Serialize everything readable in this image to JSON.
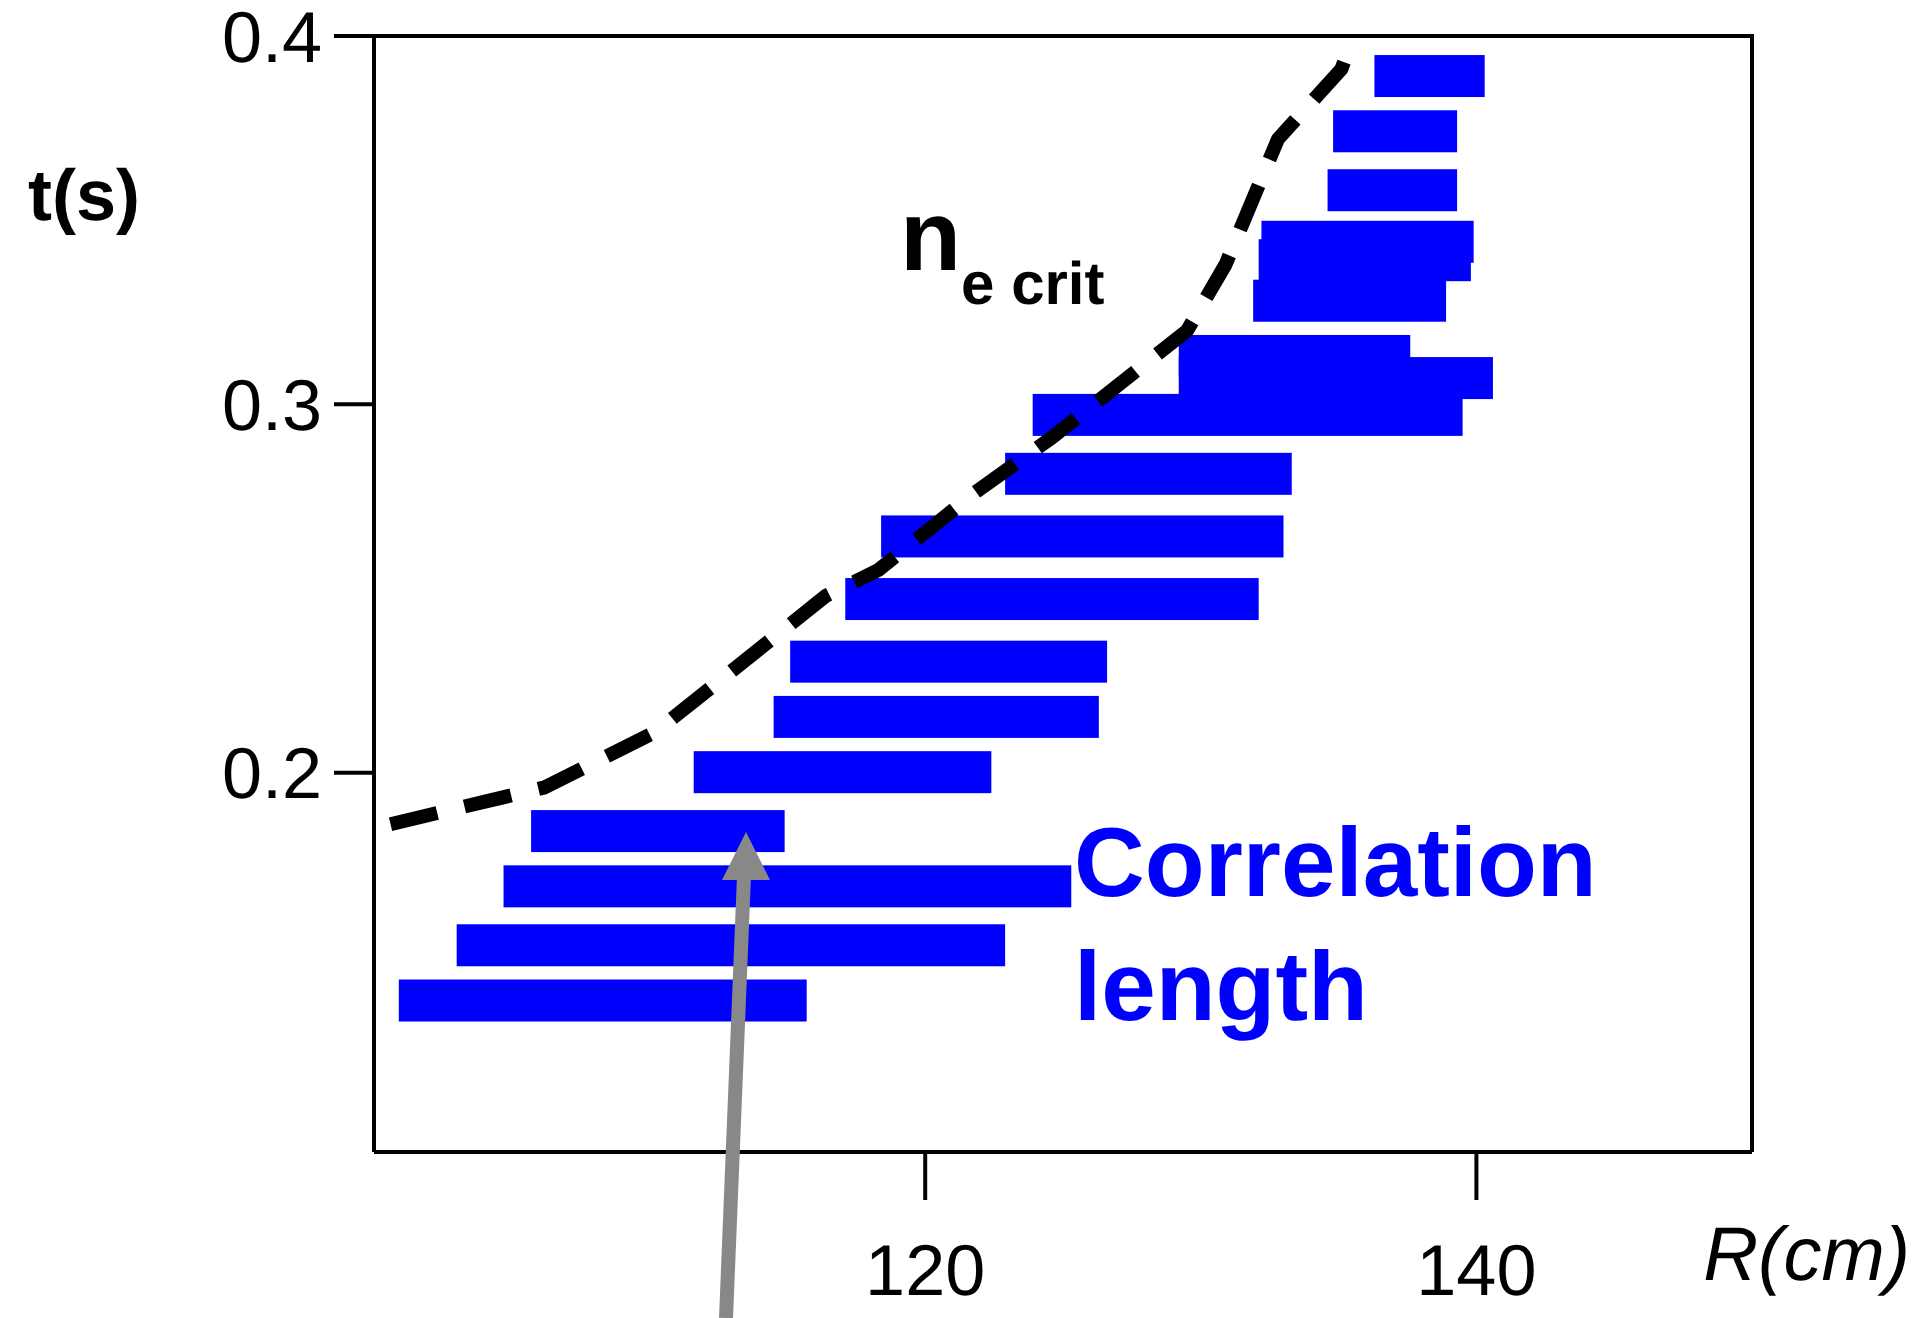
{
  "chart_data": {
    "type": "bar",
    "orientation": "horizontal",
    "xlabel": "R(cm)",
    "ylabel": "t(s)",
    "xlim": [
      100,
      150
    ],
    "xticks": [
      120,
      140
    ],
    "ylim": [
      0.097,
      0.4
    ],
    "yticks": [
      0.2,
      0.3,
      0.4
    ],
    "grid": false,
    "legend": false,
    "series": [
      {
        "name": "Correlation length",
        "color": "#0000ff",
        "x": [
          0.138,
          0.153,
          0.169,
          0.184,
          0.2,
          0.215,
          0.23,
          0.247,
          0.264,
          0.281,
          0.297,
          0.307,
          0.313,
          0.328,
          0.339,
          0.344,
          0.358,
          0.374,
          0.389
        ],
        "base": [
          100.9,
          103.0,
          104.7,
          105.7,
          111.6,
          114.5,
          115.1,
          117.1,
          118.4,
          122.9,
          123.9,
          129.2,
          129.2,
          131.9,
          132.1,
          132.2,
          134.6,
          134.8,
          136.3
        ],
        "values": [
          14.8,
          19.9,
          20.6,
          9.2,
          10.8,
          11.8,
          11.5,
          15.0,
          14.6,
          10.4,
          15.6,
          11.4,
          8.4,
          7.0,
          7.7,
          7.7,
          4.7,
          4.5,
          4.0
        ]
      },
      {
        "name": "n$_{e crit}$",
        "type": "line",
        "color": "#000000",
        "line_style": "dashed",
        "marker": "none",
        "x": [
          0.186,
          0.196,
          0.211,
          0.248,
          0.255,
          0.276,
          0.291,
          0.32,
          0.338,
          0.372,
          0.391,
          0.395
        ],
        "values": [
          100.6,
          106.2,
          110.2,
          116.4,
          118.3,
          121.8,
          124.6,
          129.5,
          130.9,
          132.8,
          135.1,
          135.3
        ]
      }
    ]
  }
}
